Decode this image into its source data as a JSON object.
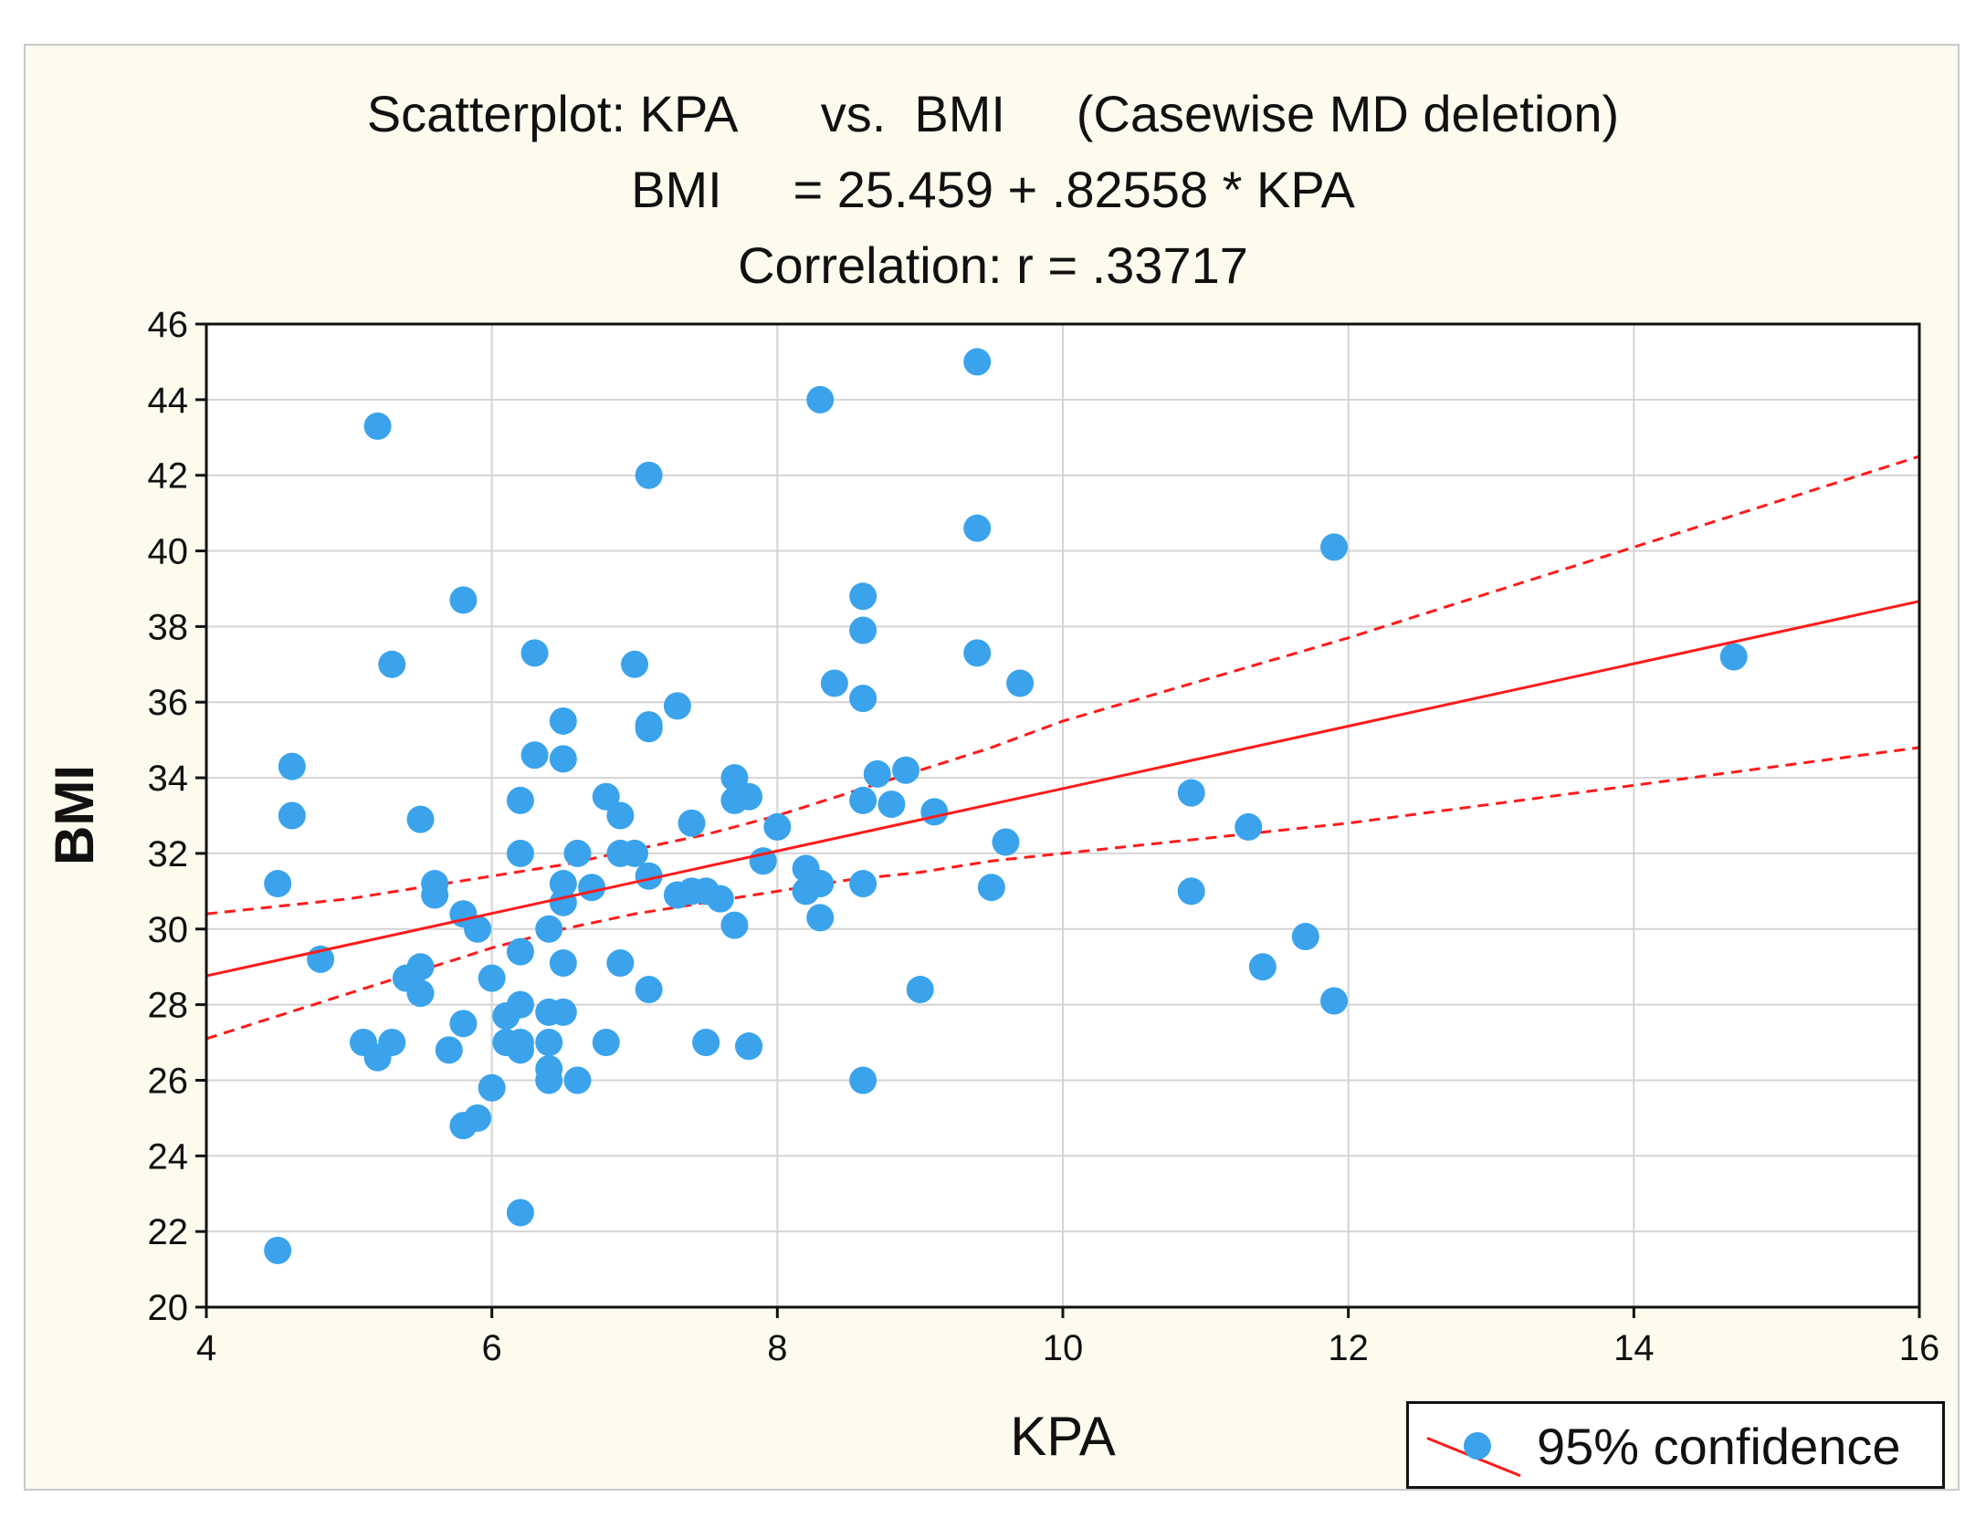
{
  "chart_data": {
    "type": "scatter",
    "title_line1": "Scatterplot: KPA      vs.  BMI     (Casewise MD deletion)",
    "title_line2": "BMI     = 25.459 + .82558 * KPA",
    "title_line3": "Correlation: r = .33717",
    "xlabel": "KPA",
    "ylabel": "BMI",
    "xlim": [
      4,
      16
    ],
    "ylim": [
      20,
      46
    ],
    "xticks": [
      4,
      6,
      8,
      10,
      12,
      14,
      16
    ],
    "yticks": [
      20,
      22,
      24,
      26,
      28,
      30,
      32,
      34,
      36,
      38,
      40,
      42,
      44,
      46
    ],
    "grid": true,
    "regression": {
      "intercept": 25.459,
      "slope": 0.82558
    },
    "confidence_band": {
      "x": [
        4,
        4.5,
        5,
        5.5,
        6,
        6.5,
        7,
        7.5,
        8,
        8.5,
        9,
        9.5,
        10,
        11,
        12,
        13,
        14,
        15,
        16
      ],
      "upper": [
        30.4,
        30.6,
        30.8,
        31.1,
        31.4,
        31.7,
        32.1,
        32.5,
        33.0,
        33.6,
        34.2,
        34.8,
        35.5,
        36.6,
        37.7,
        38.9,
        40.1,
        41.3,
        42.5
      ],
      "lower": [
        27.1,
        27.7,
        28.3,
        28.9,
        29.5,
        30.0,
        30.4,
        30.7,
        31.0,
        31.3,
        31.5,
        31.8,
        32.0,
        32.4,
        32.8,
        33.3,
        33.8,
        34.3,
        34.8
      ]
    },
    "legend": {
      "label": "95% confidence",
      "position": "bottom-right"
    },
    "colors": {
      "points": "#3aa3ec",
      "line": "#ff1a1a"
    },
    "points": [
      [
        4.5,
        31.2
      ],
      [
        4.5,
        21.5
      ],
      [
        4.6,
        34.3
      ],
      [
        4.6,
        33.0
      ],
      [
        4.8,
        29.2
      ],
      [
        5.1,
        27.0
      ],
      [
        5.2,
        26.6
      ],
      [
        5.2,
        43.3
      ],
      [
        5.3,
        27.0
      ],
      [
        5.3,
        37.0
      ],
      [
        5.4,
        28.7
      ],
      [
        5.5,
        32.9
      ],
      [
        5.5,
        29.0
      ],
      [
        5.5,
        28.3
      ],
      [
        5.6,
        31.2
      ],
      [
        5.6,
        30.9
      ],
      [
        5.7,
        26.8
      ],
      [
        5.8,
        27.5
      ],
      [
        5.8,
        30.4
      ],
      [
        5.8,
        24.8
      ],
      [
        5.8,
        38.7
      ],
      [
        5.9,
        30.0
      ],
      [
        5.9,
        25.0
      ],
      [
        6.0,
        28.7
      ],
      [
        6.0,
        25.8
      ],
      [
        6.1,
        27.7
      ],
      [
        6.1,
        27.0
      ],
      [
        6.2,
        33.4
      ],
      [
        6.2,
        32.0
      ],
      [
        6.2,
        28.0
      ],
      [
        6.2,
        29.4
      ],
      [
        6.2,
        27.0
      ],
      [
        6.2,
        26.8
      ],
      [
        6.2,
        22.5
      ],
      [
        6.3,
        37.3
      ],
      [
        6.3,
        34.6
      ],
      [
        6.4,
        30.0
      ],
      [
        6.4,
        27.8
      ],
      [
        6.4,
        27.0
      ],
      [
        6.4,
        26.3
      ],
      [
        6.4,
        26.0
      ],
      [
        6.5,
        35.5
      ],
      [
        6.5,
        34.5
      ],
      [
        6.5,
        31.2
      ],
      [
        6.5,
        30.7
      ],
      [
        6.5,
        29.1
      ],
      [
        6.5,
        27.8
      ],
      [
        6.6,
        32.0
      ],
      [
        6.6,
        26.0
      ],
      [
        6.7,
        31.1
      ],
      [
        6.8,
        33.5
      ],
      [
        6.8,
        27.0
      ],
      [
        6.9,
        33.0
      ],
      [
        6.9,
        32.0
      ],
      [
        6.9,
        29.1
      ],
      [
        7.0,
        37.0
      ],
      [
        7.0,
        32.0
      ],
      [
        7.1,
        42.0
      ],
      [
        7.1,
        35.4
      ],
      [
        7.1,
        35.3
      ],
      [
        7.1,
        31.4
      ],
      [
        7.1,
        28.4
      ],
      [
        7.3,
        35.9
      ],
      [
        7.3,
        30.9
      ],
      [
        7.4,
        32.8
      ],
      [
        7.4,
        31.0
      ],
      [
        7.5,
        31.0
      ],
      [
        7.5,
        27.0
      ],
      [
        7.6,
        30.8
      ],
      [
        7.7,
        34.0
      ],
      [
        7.7,
        33.4
      ],
      [
        7.7,
        30.1
      ],
      [
        7.8,
        33.5
      ],
      [
        7.8,
        26.9
      ],
      [
        7.8,
        26.9
      ],
      [
        7.9,
        31.8
      ],
      [
        8.0,
        32.7
      ],
      [
        8.2,
        31.6
      ],
      [
        8.2,
        31.0
      ],
      [
        8.3,
        44.0
      ],
      [
        8.3,
        31.2
      ],
      [
        8.3,
        30.3
      ],
      [
        8.4,
        36.5
      ],
      [
        8.6,
        38.8
      ],
      [
        8.6,
        37.9
      ],
      [
        8.6,
        36.1
      ],
      [
        8.6,
        33.4
      ],
      [
        8.6,
        31.2
      ],
      [
        8.6,
        26.0
      ],
      [
        8.7,
        34.1
      ],
      [
        8.8,
        33.3
      ],
      [
        8.9,
        34.2
      ],
      [
        9.0,
        28.4
      ],
      [
        9.1,
        33.1
      ],
      [
        9.4,
        45.0
      ],
      [
        9.4,
        40.6
      ],
      [
        9.4,
        37.3
      ],
      [
        9.5,
        31.1
      ],
      [
        9.6,
        32.3
      ],
      [
        9.7,
        36.5
      ],
      [
        10.9,
        33.6
      ],
      [
        10.9,
        31.0
      ],
      [
        11.3,
        32.7
      ],
      [
        11.4,
        29.0
      ],
      [
        11.7,
        29.8
      ],
      [
        11.9,
        40.1
      ],
      [
        11.9,
        28.1
      ],
      [
        14.7,
        37.2
      ]
    ]
  }
}
